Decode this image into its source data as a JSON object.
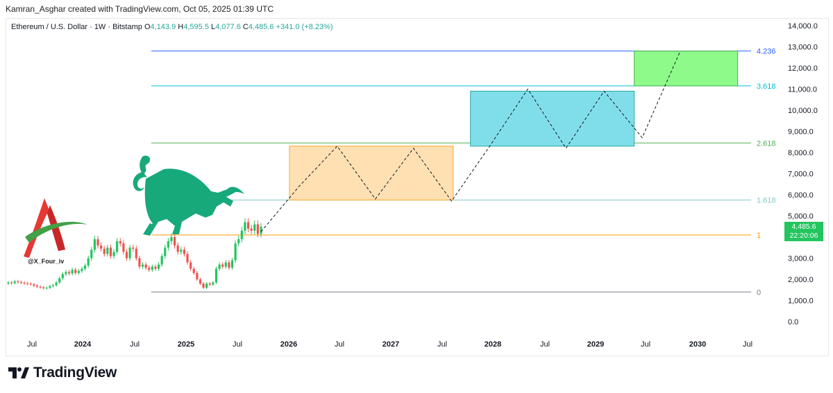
{
  "credit": "Kamran_Asghar created with TradingView.com, Oct 05, 2025 01:39 UTC",
  "legend": {
    "symbol": "Ethereum / U.S. Dollar · 1W · Bitstamp",
    "open_label": "O",
    "open": "4,143.9",
    "high_label": "H",
    "high": "4,595.5",
    "low_label": "L",
    "low": "4,077.6",
    "close_label": "C",
    "close": "4,485.6",
    "change": "+341.0 (+8.23%)"
  },
  "price_tag": {
    "price": "4,485.6",
    "countdown": "22:20:06",
    "color": "#22c55e"
  },
  "watermark_handle": "@X_Four_iv",
  "brand": "TradingView",
  "colors": {
    "up": "#22c55e",
    "down": "#ef5350",
    "bull": "#18a97a"
  },
  "icons": {
    "bull": "bull-icon",
    "logo": "red-a-logo-icon",
    "brand": "tradingview-logo-icon"
  },
  "chart_data": {
    "type": "line",
    "y_ticks": [
      "14,000.0",
      "13,000.0",
      "12,000.0",
      "11,000.0",
      "10,000.0",
      "9,000.0",
      "8,000.0",
      "7,000.0",
      "6,000.0",
      "5,000.0",
      "4,000.0",
      "3,000.0",
      "2,000.0",
      "1,000.0",
      "0.0"
    ],
    "y_range": [
      0,
      14000
    ],
    "x_ticks": [
      "Jul",
      "2024",
      "Jul",
      "2025",
      "Jul",
      "2026",
      "Jul",
      "2027",
      "Jul",
      "2028",
      "Jul",
      "2029",
      "Jul",
      "2030",
      "Jul"
    ],
    "fib_levels": [
      {
        "label": "4.236",
        "value": 12800,
        "color": "#2962ff"
      },
      {
        "label": "3.618",
        "value": 11150,
        "color": "#00bcd4"
      },
      {
        "label": "2.618",
        "value": 8450,
        "color": "#4caf50"
      },
      {
        "label": "1.618",
        "value": 5750,
        "color": "#80cbc4"
      },
      {
        "label": "1",
        "value": 4100,
        "color": "#ff9800"
      },
      {
        "label": "0",
        "value": 1400,
        "color": "#787b86"
      }
    ],
    "boxes": [
      {
        "from": "2026-01",
        "to": "2027-08",
        "low": 5750,
        "high": 8300,
        "fill": "#ffe0b2",
        "stroke": "#ffa726"
      },
      {
        "from": "2027-10",
        "to": "2029-05",
        "low": 8300,
        "high": 10900,
        "fill": "#80deea",
        "stroke": "#26a69a"
      },
      {
        "from": "2029-05",
        "to": "2030-05",
        "low": 11150,
        "high": 12800,
        "fill": "#8dfa8a",
        "stroke": "#4caf50"
      }
    ],
    "projection_path": [
      4250,
      6400,
      8300,
      5800,
      8200,
      5700,
      8300,
      11000,
      8200,
      10900,
      8700,
      12800
    ],
    "price_series": [
      {
        "o": 1800,
        "c": 1850
      },
      {
        "o": 1850,
        "c": 1820
      },
      {
        "o": 1820,
        "c": 1900
      },
      {
        "o": 1900,
        "c": 1870
      },
      {
        "o": 1870,
        "c": 1840
      },
      {
        "o": 1840,
        "c": 1810
      },
      {
        "o": 1810,
        "c": 1790
      },
      {
        "o": 1790,
        "c": 1760
      },
      {
        "o": 1760,
        "c": 1700
      },
      {
        "o": 1700,
        "c": 1650
      },
      {
        "o": 1650,
        "c": 1620
      },
      {
        "o": 1620,
        "c": 1580
      },
      {
        "o": 1580,
        "c": 1600
      },
      {
        "o": 1600,
        "c": 1680
      },
      {
        "o": 1680,
        "c": 1720
      },
      {
        "o": 1720,
        "c": 1850
      },
      {
        "o": 1850,
        "c": 2050
      },
      {
        "o": 2050,
        "c": 2250
      },
      {
        "o": 2250,
        "c": 2350
      },
      {
        "o": 2350,
        "c": 2280
      },
      {
        "o": 2280,
        "c": 2450
      },
      {
        "o": 2450,
        "c": 2300
      },
      {
        "o": 2300,
        "c": 2400
      },
      {
        "o": 2400,
        "c": 2500
      },
      {
        "o": 2500,
        "c": 2650
      },
      {
        "o": 2650,
        "c": 3000
      },
      {
        "o": 3000,
        "c": 3400
      },
      {
        "o": 3400,
        "c": 3900
      },
      {
        "o": 3900,
        "c": 3600
      },
      {
        "o": 3600,
        "c": 3450
      },
      {
        "o": 3450,
        "c": 3200
      },
      {
        "o": 3200,
        "c": 3500
      },
      {
        "o": 3500,
        "c": 3100
      },
      {
        "o": 3100,
        "c": 3300
      },
      {
        "o": 3300,
        "c": 3800
      },
      {
        "o": 3800,
        "c": 3700
      },
      {
        "o": 3700,
        "c": 3300
      },
      {
        "o": 3300,
        "c": 3000
      },
      {
        "o": 3000,
        "c": 3500
      },
      {
        "o": 3500,
        "c": 3450
      },
      {
        "o": 3450,
        "c": 3000
      },
      {
        "o": 3000,
        "c": 2600
      },
      {
        "o": 2600,
        "c": 2700
      },
      {
        "o": 2700,
        "c": 2550
      },
      {
        "o": 2550,
        "c": 2450
      },
      {
        "o": 2450,
        "c": 2600
      },
      {
        "o": 2600,
        "c": 2500
      },
      {
        "o": 2500,
        "c": 2700
      },
      {
        "o": 2700,
        "c": 3100
      },
      {
        "o": 3100,
        "c": 3500
      },
      {
        "o": 3500,
        "c": 3800
      },
      {
        "o": 3800,
        "c": 4000
      },
      {
        "o": 4000,
        "c": 3600
      },
      {
        "o": 3600,
        "c": 3300
      },
      {
        "o": 3300,
        "c": 3400
      },
      {
        "o": 3400,
        "c": 3200
      },
      {
        "o": 3200,
        "c": 2800
      },
      {
        "o": 2800,
        "c": 2500
      },
      {
        "o": 2500,
        "c": 2300
      },
      {
        "o": 2300,
        "c": 2000
      },
      {
        "o": 2000,
        "c": 1800
      },
      {
        "o": 1800,
        "c": 1600
      },
      {
        "o": 1600,
        "c": 1800
      },
      {
        "o": 1800,
        "c": 1750
      },
      {
        "o": 1750,
        "c": 1850
      },
      {
        "o": 1850,
        "c": 2500
      },
      {
        "o": 2500,
        "c": 2700
      },
      {
        "o": 2700,
        "c": 2600
      },
      {
        "o": 2600,
        "c": 2800
      },
      {
        "o": 2800,
        "c": 2550
      },
      {
        "o": 2550,
        "c": 2900
      },
      {
        "o": 2900,
        "c": 3700
      },
      {
        "o": 3700,
        "c": 3900
      },
      {
        "o": 3900,
        "c": 4300
      },
      {
        "o": 4300,
        "c": 4700
      },
      {
        "o": 4700,
        "c": 4400
      },
      {
        "o": 4400,
        "c": 4300
      },
      {
        "o": 4300,
        "c": 4600
      },
      {
        "o": 4600,
        "c": 4150
      },
      {
        "o": 4150,
        "c": 4485
      }
    ]
  }
}
